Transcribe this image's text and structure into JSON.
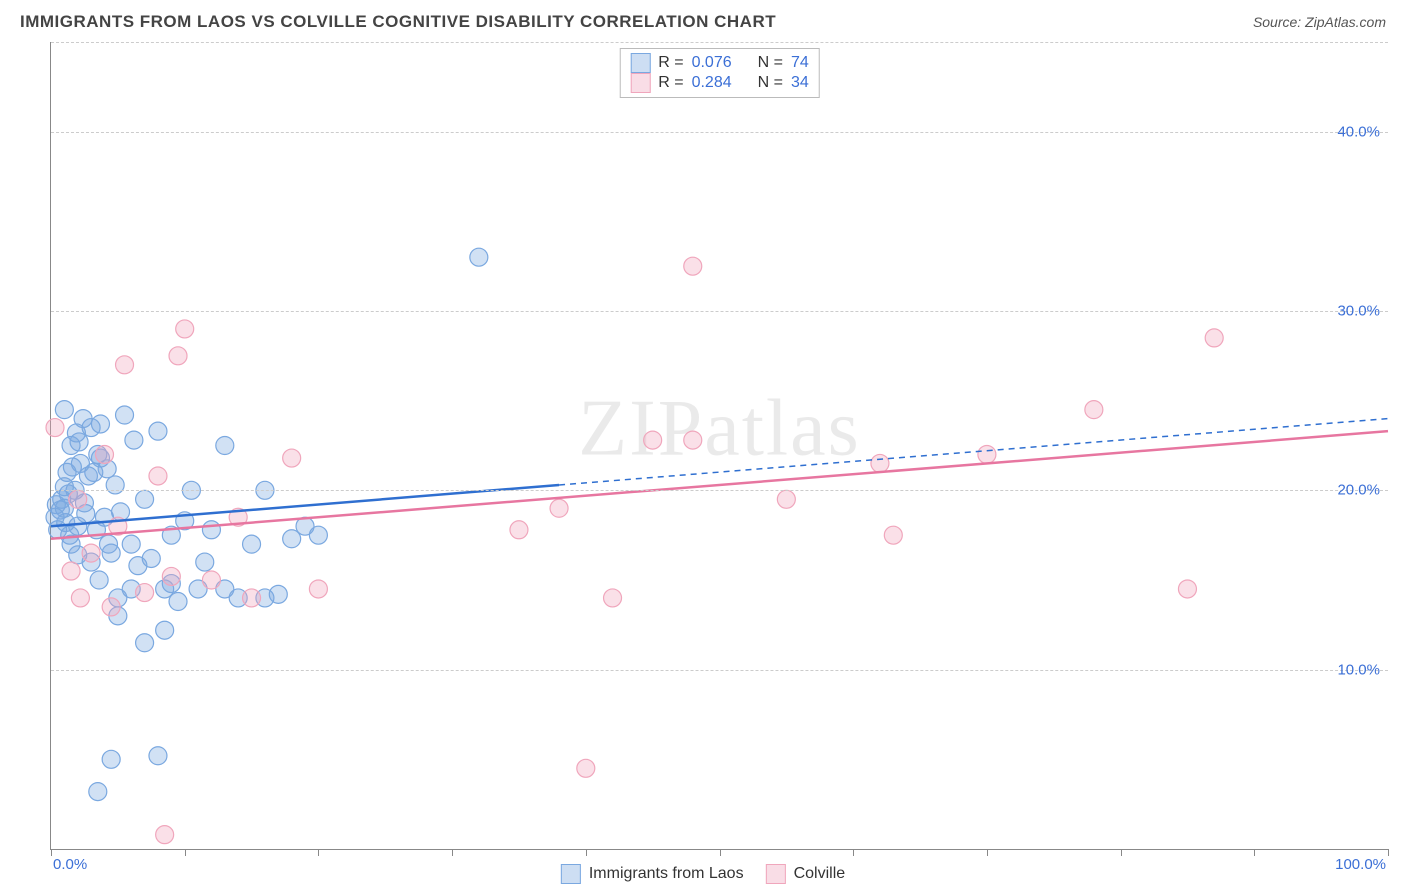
{
  "title": "IMMIGRANTS FROM LAOS VS COLVILLE COGNITIVE DISABILITY CORRELATION CHART",
  "source_prefix": "Source: ",
  "source_name": "ZipAtlas.com",
  "watermark": "ZIPatlas",
  "ylabel": "Cognitive Disability",
  "chart": {
    "type": "scatter",
    "xlim": [
      0,
      100
    ],
    "ylim": [
      0,
      45
    ],
    "x_tick_positions": [
      0,
      10,
      20,
      30,
      40,
      50,
      60,
      70,
      80,
      90,
      100
    ],
    "x_tick_labels": {
      "0": "0.0%",
      "100": "100.0%"
    },
    "y_gridlines": [
      10,
      20,
      30,
      40,
      45
    ],
    "y_tick_labels": {
      "10": "10.0%",
      "20": "20.0%",
      "30": "30.0%",
      "40": "40.0%"
    },
    "background_color": "#ffffff",
    "grid_color": "#cccccc",
    "axis_color": "#888888",
    "label_color": "#3b6fd6",
    "marker_radius": 9,
    "marker_fill_opacity": 0.35,
    "marker_stroke_width": 1.2,
    "line_width": 2.5
  },
  "series": [
    {
      "name": "Immigrants from Laos",
      "color": "#7aa8e0",
      "line_color": "#2f6fd0",
      "R": "0.076",
      "N": "74",
      "regression": {
        "x1": 0,
        "y1": 18.0,
        "x2": 38,
        "y2": 20.3,
        "extend_x2": 100,
        "extend_y2": 24.0,
        "dash_after": true
      },
      "points": [
        [
          0.3,
          18.5
        ],
        [
          0.4,
          19.2
        ],
        [
          0.5,
          17.8
        ],
        [
          0.7,
          18.9
        ],
        [
          0.8,
          19.5
        ],
        [
          1.0,
          19.0
        ],
        [
          1.0,
          20.2
        ],
        [
          1.1,
          18.2
        ],
        [
          1.2,
          21.0
        ],
        [
          1.3,
          19.8
        ],
        [
          1.4,
          17.5
        ],
        [
          1.5,
          22.5
        ],
        [
          1.6,
          21.3
        ],
        [
          1.8,
          20.0
        ],
        [
          1.9,
          23.2
        ],
        [
          2.0,
          18.0
        ],
        [
          2.1,
          22.7
        ],
        [
          2.2,
          21.5
        ],
        [
          2.4,
          24.0
        ],
        [
          2.5,
          19.3
        ],
        [
          2.6,
          18.7
        ],
        [
          2.8,
          20.8
        ],
        [
          3.0,
          23.5
        ],
        [
          3.0,
          16.0
        ],
        [
          3.2,
          21.0
        ],
        [
          3.4,
          17.8
        ],
        [
          3.5,
          22.0
        ],
        [
          3.6,
          15.0
        ],
        [
          3.7,
          23.7
        ],
        [
          4.0,
          18.5
        ],
        [
          4.2,
          21.2
        ],
        [
          4.5,
          16.5
        ],
        [
          4.8,
          20.3
        ],
        [
          5.0,
          14.0
        ],
        [
          5.2,
          18.8
        ],
        [
          5.5,
          24.2
        ],
        [
          6.0,
          17.0
        ],
        [
          6.2,
          22.8
        ],
        [
          6.5,
          15.8
        ],
        [
          7.0,
          19.5
        ],
        [
          7.5,
          16.2
        ],
        [
          8.0,
          23.3
        ],
        [
          8.5,
          14.5
        ],
        [
          9.0,
          17.5
        ],
        [
          9.5,
          13.8
        ],
        [
          10.0,
          18.3
        ],
        [
          10.5,
          20.0
        ],
        [
          11.0,
          14.5
        ],
        [
          11.5,
          16.0
        ],
        [
          12.0,
          17.8
        ],
        [
          13.0,
          22.5
        ],
        [
          14.0,
          14.0
        ],
        [
          15.0,
          17.0
        ],
        [
          16.0,
          20.0
        ],
        [
          17.0,
          14.2
        ],
        [
          18.0,
          17.3
        ],
        [
          19.0,
          18.0
        ],
        [
          20.0,
          17.5
        ],
        [
          7.0,
          11.5
        ],
        [
          8.5,
          12.2
        ],
        [
          5.0,
          13.0
        ],
        [
          3.5,
          3.2
        ],
        [
          4.5,
          5.0
        ],
        [
          8.0,
          5.2
        ],
        [
          1.0,
          24.5
        ],
        [
          1.5,
          17.0
        ],
        [
          2.0,
          16.4
        ],
        [
          3.7,
          21.8
        ],
        [
          4.3,
          17.0
        ],
        [
          6.0,
          14.5
        ],
        [
          9.0,
          14.8
        ],
        [
          13.0,
          14.5
        ],
        [
          16.0,
          14.0
        ],
        [
          32.0,
          33.0
        ]
      ]
    },
    {
      "name": "Colville",
      "color": "#f0a6bc",
      "line_color": "#e776a0",
      "R": "0.284",
      "N": "34",
      "regression": {
        "x1": 0,
        "y1": 17.3,
        "x2": 100,
        "y2": 23.3,
        "dash_after": false
      },
      "points": [
        [
          0.3,
          23.5
        ],
        [
          1.5,
          15.5
        ],
        [
          2.0,
          19.5
        ],
        [
          3.0,
          16.5
        ],
        [
          4.0,
          22.0
        ],
        [
          5.0,
          18.0
        ],
        [
          5.5,
          27.0
        ],
        [
          7.0,
          14.3
        ],
        [
          8.0,
          20.8
        ],
        [
          9.0,
          15.2
        ],
        [
          9.5,
          27.5
        ],
        [
          10.0,
          29.0
        ],
        [
          12.0,
          15.0
        ],
        [
          14.0,
          18.5
        ],
        [
          15.0,
          14.0
        ],
        [
          18.0,
          21.8
        ],
        [
          20.0,
          14.5
        ],
        [
          35.0,
          17.8
        ],
        [
          38.0,
          19.0
        ],
        [
          40.0,
          4.5
        ],
        [
          42.0,
          14.0
        ],
        [
          45.0,
          22.8
        ],
        [
          48.0,
          22.8
        ],
        [
          48.0,
          32.5
        ],
        [
          55.0,
          19.5
        ],
        [
          63.0,
          17.5
        ],
        [
          62.0,
          21.5
        ],
        [
          70.0,
          22.0
        ],
        [
          78.0,
          24.5
        ],
        [
          85.0,
          14.5
        ],
        [
          87.0,
          28.5
        ],
        [
          8.5,
          0.8
        ],
        [
          2.2,
          14.0
        ],
        [
          4.5,
          13.5
        ]
      ]
    }
  ],
  "footer": {
    "items": [
      {
        "label": "Immigrants from Laos",
        "color": "#7aa8e0"
      },
      {
        "label": "Colville",
        "color": "#f0a6bc"
      }
    ]
  },
  "legend_stats": {
    "r_label": "R =",
    "n_label": "N ="
  }
}
